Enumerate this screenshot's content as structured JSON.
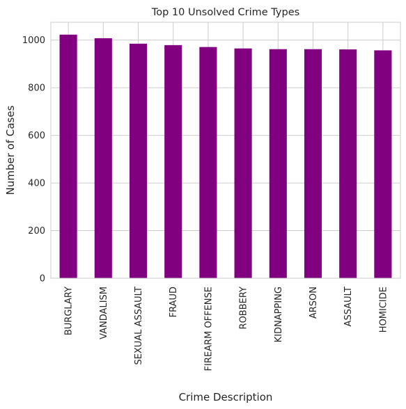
{
  "chart_data": {
    "type": "bar",
    "title": "Top 10 Unsolved Crime Types",
    "xlabel": "Crime Description",
    "ylabel": "Number of Cases",
    "categories": [
      "BURGLARY",
      "VANDALISM",
      "SEXUAL ASSAULT",
      "FRAUD",
      "FIREARM OFFENSE",
      "ROBBERY",
      "KIDNAPPING",
      "ARSON",
      "ASSAULT",
      "HOMICIDE"
    ],
    "values": [
      1023,
      1008,
      985,
      979,
      971,
      965,
      962,
      962,
      961,
      957
    ],
    "ylim": [
      0,
      1075
    ],
    "yticks": [
      0,
      200,
      400,
      600,
      800,
      1000
    ],
    "bar_color": "#800080",
    "grid": true,
    "legend": "none"
  }
}
